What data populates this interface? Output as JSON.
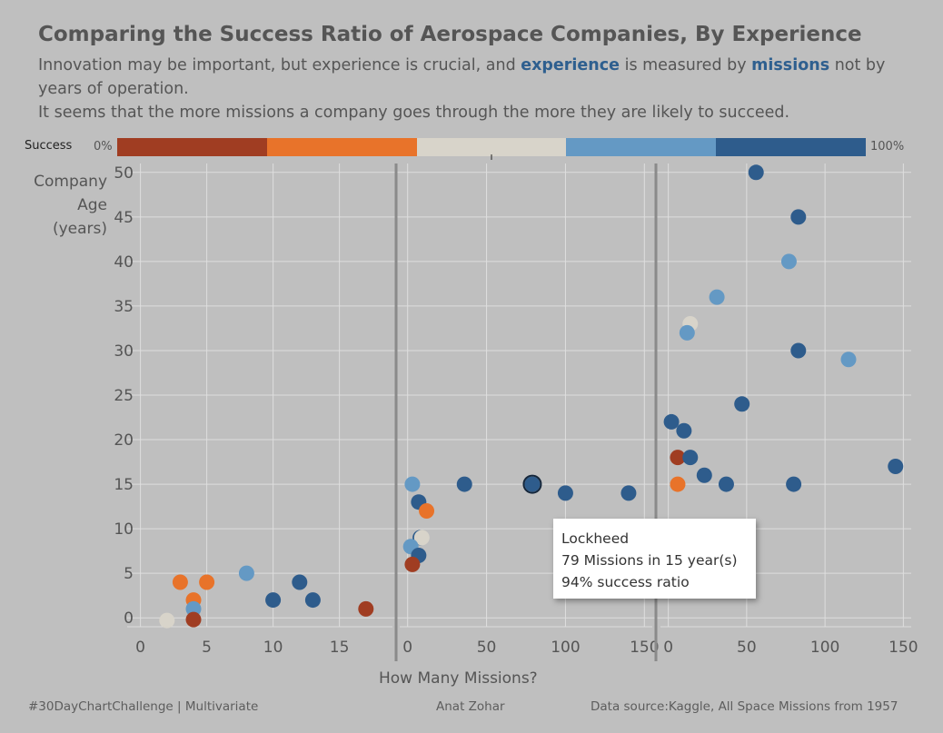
{
  "header": {
    "title": "Comparing the Success Ratio of Aerospace Companies, By Experience",
    "subtitle_part1": "Innovation may be important, but experience is crucial, and ",
    "subtitle_kw1": "experience",
    "subtitle_part2": " is measured by ",
    "subtitle_kw2": "missions",
    "subtitle_part3": " not by years of operation.",
    "subtitle_line2": "It seems that the more missions a company goes through the more they are likely to succeed."
  },
  "legend": {
    "label": "Success",
    "min_label": "0%",
    "max_label": "100%",
    "colors": [
      "#a03d22",
      "#e8732a",
      "#d8d4ca",
      "#6499c4",
      "#2e5c8c"
    ]
  },
  "axes": {
    "ylabel": "Company Age (years)",
    "xlabel": "How Many Missions?"
  },
  "tooltip": {
    "line1": "Lockheed",
    "line2": "79 Missions in 15  year(s)",
    "line3": "94% success ratio"
  },
  "footer": {
    "left": "#30DayChartChallenge  |  Multivariate",
    "center": "Anat Zohar",
    "right": "Data source:Kaggle, All Space Missions from 1957"
  },
  "chart_data": {
    "type": "scatter",
    "ylim": [
      -1,
      51
    ],
    "yticks": [
      0,
      5,
      10,
      15,
      20,
      25,
      30,
      35,
      40,
      45,
      50
    ],
    "panels": [
      {
        "xlim": [
          -1,
          19
        ],
        "xticks": [
          0,
          5,
          10,
          15
        ],
        "points": [
          {
            "x": 2,
            "y": -0.3,
            "c": 2
          },
          {
            "x": 3,
            "y": 4,
            "c": 1
          },
          {
            "x": 4,
            "y": 2,
            "c": 1
          },
          {
            "x": 4,
            "y": 1,
            "c": 3
          },
          {
            "x": 4,
            "y": -0.2,
            "c": 0
          },
          {
            "x": 5,
            "y": 4,
            "c": 1
          },
          {
            "x": 8,
            "y": 5,
            "c": 3
          },
          {
            "x": 10,
            "y": 2,
            "c": 4
          },
          {
            "x": 12,
            "y": 4,
            "c": 4
          },
          {
            "x": 13,
            "y": 2,
            "c": 4
          },
          {
            "x": 17,
            "y": 1,
            "c": 0
          }
        ]
      },
      {
        "xlim": [
          -5,
          155
        ],
        "xticks": [
          0,
          50,
          100,
          150
        ],
        "points": [
          {
            "x": 3,
            "y": 15,
            "c": 3
          },
          {
            "x": 7,
            "y": 13,
            "c": 4
          },
          {
            "x": 12,
            "y": 12,
            "c": 1
          },
          {
            "x": 8,
            "y": 9,
            "c": 4
          },
          {
            "x": 9,
            "y": 9,
            "c": 2
          },
          {
            "x": 2,
            "y": 8,
            "c": 3
          },
          {
            "x": 7,
            "y": 7,
            "c": 4
          },
          {
            "x": 3,
            "y": 6,
            "c": 0
          },
          {
            "x": 36,
            "y": 15,
            "c": 4
          },
          {
            "x": 79,
            "y": 15,
            "c": 4
          },
          {
            "x": 100,
            "y": 14,
            "c": 4
          },
          {
            "x": 140,
            "y": 14,
            "c": 4
          }
        ]
      },
      {
        "xlim": [
          -5,
          155
        ],
        "xticks": [
          0,
          50,
          100,
          150
        ],
        "points": [
          {
            "x": 56,
            "y": 50,
            "c": 4
          },
          {
            "x": 83,
            "y": 45,
            "c": 4
          },
          {
            "x": 77,
            "y": 40,
            "c": 3
          },
          {
            "x": 31,
            "y": 36,
            "c": 3
          },
          {
            "x": 14,
            "y": 33,
            "c": 2
          },
          {
            "x": 12,
            "y": 32,
            "c": 3
          },
          {
            "x": 83,
            "y": 30,
            "c": 4
          },
          {
            "x": 115,
            "y": 29,
            "c": 3
          },
          {
            "x": 47,
            "y": 24,
            "c": 4
          },
          {
            "x": 2,
            "y": 22,
            "c": 4
          },
          {
            "x": 10,
            "y": 21,
            "c": 4
          },
          {
            "x": 6,
            "y": 18,
            "c": 0
          },
          {
            "x": 14,
            "y": 18,
            "c": 4
          },
          {
            "x": 23,
            "y": 16,
            "c": 4
          },
          {
            "x": 6,
            "y": 15,
            "c": 1
          },
          {
            "x": 37,
            "y": 15,
            "c": 4
          },
          {
            "x": 80,
            "y": 15,
            "c": 4
          },
          {
            "x": 145,
            "y": 17,
            "c": 4
          }
        ]
      }
    ]
  }
}
